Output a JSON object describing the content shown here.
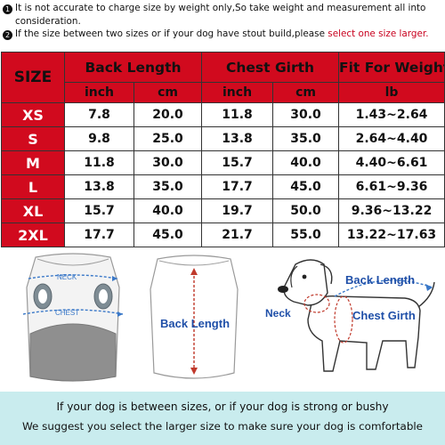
{
  "notes": {
    "n1_bullet": "1",
    "n1_text": "It is not accurate to charge size by weight only,So take weight and measurement all into",
    "n1_text_cont": "consideration.",
    "n2_bullet": "2",
    "n2_text": "If the size between two sizes or if your dog have stout build,please ",
    "n2_highlight": "select one size larger."
  },
  "table": {
    "size_header": "SIZE",
    "back_length_header": "Back Length",
    "chest_girth_header": "Chest Girth",
    "weight_header": "Fit For Weight",
    "unit_inch_1": "inch",
    "unit_cm_1": "cm",
    "unit_inch_2": "inch",
    "unit_cm_2": "cm",
    "unit_lb": "lb",
    "rows": [
      {
        "size": "XS",
        "bl_inch": "7.8",
        "bl_cm": "20.0",
        "cg_inch": "11.8",
        "cg_cm": "30.0",
        "weight": "1.43~2.64"
      },
      {
        "size": "S",
        "bl_inch": "9.8",
        "bl_cm": "25.0",
        "cg_inch": "13.8",
        "cg_cm": "35.0",
        "weight": "2.64~4.40"
      },
      {
        "size": "M",
        "bl_inch": "11.8",
        "bl_cm": "30.0",
        "cg_inch": "15.7",
        "cg_cm": "40.0",
        "weight": "4.40~6.61"
      },
      {
        "size": "L",
        "bl_inch": "13.8",
        "bl_cm": "35.0",
        "cg_inch": "17.7",
        "cg_cm": "45.0",
        "weight": "6.61~9.36"
      },
      {
        "size": "XL",
        "bl_inch": "15.7",
        "bl_cm": "40.0",
        "cg_inch": "19.7",
        "cg_cm": "50.0",
        "weight": "9.36~13.22"
      },
      {
        "size": "2XL",
        "bl_inch": "17.7",
        "bl_cm": "45.0",
        "cg_inch": "21.7",
        "cg_cm": "55.0",
        "weight": "13.22~17.63"
      }
    ]
  },
  "illustration": {
    "neck_label_small": "NECK",
    "chest_label_small": "CHEST",
    "back_length_label": "Back Length",
    "dog_back_length_label": "Back Length",
    "dog_neck_label": "Neck",
    "dog_chest_girth_label": "Chest Girth"
  },
  "footer": {
    "line1": "If your dog is between sizes, or if your dog is strong or bushy",
    "line2": "We suggest you select the larger size to make sure  your dog is comfortable"
  },
  "colors": {
    "header_red": "#d10a1e",
    "accent_blue": "#1f4fa8",
    "footer_bg": "#c9ecee"
  }
}
